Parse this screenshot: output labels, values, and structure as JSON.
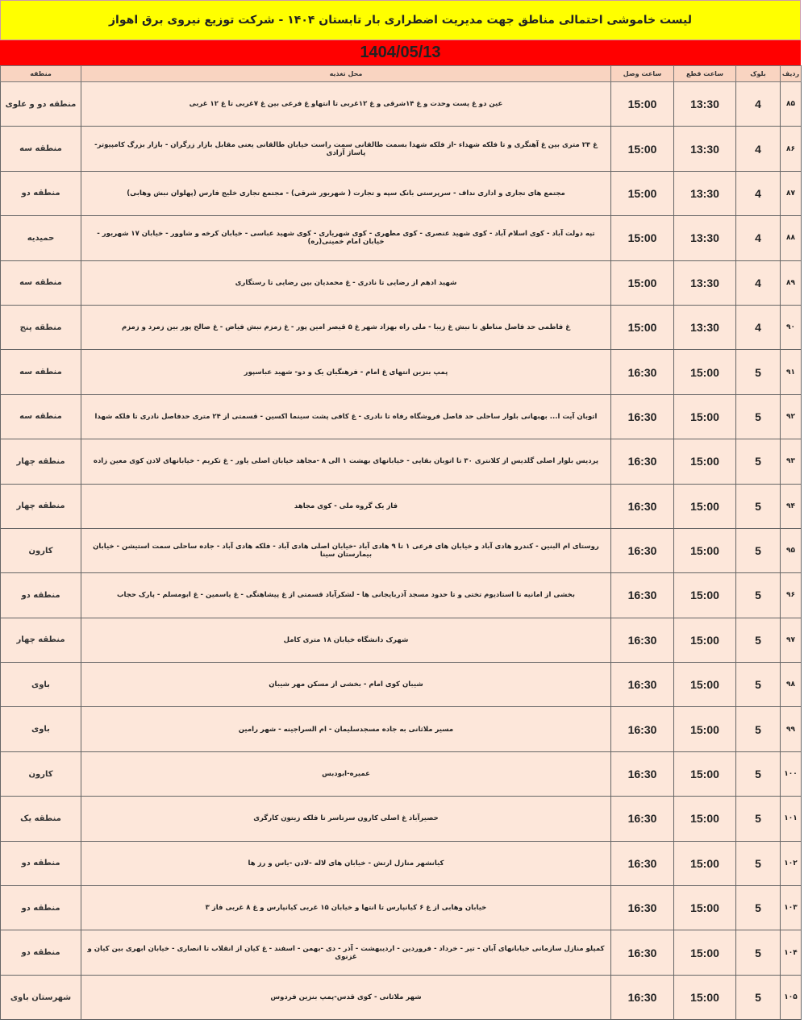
{
  "title": "لیست خاموشی احتمالی مناطق جهت مدیریت اضطراری بار تابستان ۱۴۰۴ - شرکت توزیع نیروی برق اهواز",
  "date": "1404/05/13",
  "headers": {
    "row": "ردیف",
    "block": "بلوک",
    "cut": "ساعت قطع",
    "reconnect": "ساعت وصل",
    "location": "محل تغذیه",
    "region": "منطقه"
  },
  "rows": [
    {
      "row": "۸۵",
      "block": "4",
      "cut": "13:30",
      "reconnect": "15:00",
      "location": "عین دو غ پست وحدت و غ ۱۴شرقی و غ ۱۲غربی تا انتهاو غ فرعی بین غ ۷غربی تا غ ۱۲ غربی",
      "region": "منطقه دو و علوی"
    },
    {
      "row": "۸۶",
      "block": "4",
      "cut": "13:30",
      "reconnect": "15:00",
      "location": "غ ۲۴ متری بین غ آهنگری و تا فلکه شهداء -از فلکه شهدا بسمت طالقانی سمت راست خیابان طالقانی یعنی مقابل بازار زرگران - بازار بزرگ کامپیوتر- پاساژ آزادی",
      "region": "منطقه سه"
    },
    {
      "row": "۸۷",
      "block": "4",
      "cut": "13:30",
      "reconnect": "15:00",
      "location": "مجتمع های تجاری و اداری نداف - سرپرستی بانک سپه و تجارت ( شهریور شرقی) - مجتمع تجاری خلیج فارس (پهلوان نبش وهابی)",
      "region": "منطقه دو"
    },
    {
      "row": "۸۸",
      "block": "4",
      "cut": "13:30",
      "reconnect": "15:00",
      "location": "تپه دولت آباد - کوی اسلام آباد - کوی شهید عنصری - کوی مطهری - کوی شهریاری - کوی شهید عباسی - خیابان کرخه و شاوور - خیابان ۱۷ شهریور - خیابان امام خمینی(ره)",
      "region": "حمیدیه"
    },
    {
      "row": "۸۹",
      "block": "4",
      "cut": "13:30",
      "reconnect": "15:00",
      "location": "شهید ادهم از رضایی تا نادری - غ محمدیان بین رضایی تا رستگاری",
      "region": "منطقه سه"
    },
    {
      "row": "۹۰",
      "block": "4",
      "cut": "13:30",
      "reconnect": "15:00",
      "location": "غ فاطمی حد فاصل مناطق تا نبش غ زیبا - ملی راه بهزاد شهر غ ۵ قیصر امین پور - غ زمزم نبش فیاض - غ صالح پور بین زمرد و زمزم",
      "region": "منطقه پنج"
    },
    {
      "row": "۹۱",
      "block": "5",
      "cut": "15:00",
      "reconnect": "16:30",
      "location": "پمپ بنزین انتهای غ امام  - فرهنگیان یک و دو- شهید عباسپور",
      "region": "منطقه سه"
    },
    {
      "row": "۹۲",
      "block": "5",
      "cut": "15:00",
      "reconnect": "16:30",
      "location": "اتوبان آیت ا... بهبهانی بلوار ساحلی حد فاصل فروشگاه رفاه تا نادری - غ کافی پشت سینما اکسین - قسمتی از ۲۴ متری حدفاصل نادری تا فلکه شهدا",
      "region": "منطقه سه"
    },
    {
      "row": "۹۳",
      "block": "5",
      "cut": "15:00",
      "reconnect": "16:30",
      "location": "پردیس بلوار اصلی گلدیس از کلانتری ۳۰ تا اتوبان بقایی - خیابانهای بهشت ۱ الی ۸ -مجاهد خیابان اصلی یاور - غ تکریم - خیابانهای لادن کوی معین زاده",
      "region": "منطقه چهار"
    },
    {
      "row": "۹۴",
      "block": "5",
      "cut": "15:00",
      "reconnect": "16:30",
      "location": "فاز یک گروه ملی - کوی مجاهد",
      "region": "منطقه چهار"
    },
    {
      "row": "۹۵",
      "block": "5",
      "cut": "15:00",
      "reconnect": "16:30",
      "location": "روستای ام البنین - کندرو هادی آباد و خیابان های فرعی ۱ تا ۹ هادی آباد -خیابان اصلی هادی آباد - فلکه هادی آباد - جاده ساحلی سمت استیشن - خیابان بیمارستان سینا",
      "region": "کارون"
    },
    {
      "row": "۹۶",
      "block": "5",
      "cut": "15:00",
      "reconnect": "16:30",
      "location": "بخشی از امانیه تا استادیوم تختی و تا حدود مسجد آذربایجانی ها - لشکرآباد قسمتی از غ پیشاهنگی - غ یاسمین - غ ابومسلم - پارک حجاب",
      "region": "منطقه دو"
    },
    {
      "row": "۹۷",
      "block": "5",
      "cut": "15:00",
      "reconnect": "16:30",
      "location": "شهرک دانشگاه خیابان ۱۸ متری کامل",
      "region": "منطقه چهار"
    },
    {
      "row": "۹۸",
      "block": "5",
      "cut": "15:00",
      "reconnect": "16:30",
      "location": "شیبان کوی امام - بخشی از مسکن مهر شیبان",
      "region": "باوی"
    },
    {
      "row": "۹۹",
      "block": "5",
      "cut": "15:00",
      "reconnect": "16:30",
      "location": "مسیر ملاثانی به جاده مسجدسلیمان - ام السراجینه - شهر رامین",
      "region": "باوی"
    },
    {
      "row": "۱۰۰",
      "block": "5",
      "cut": "15:00",
      "reconnect": "16:30",
      "location": "عمیره-ابودبس",
      "region": "کارون"
    },
    {
      "row": "۱۰۱",
      "block": "5",
      "cut": "15:00",
      "reconnect": "16:30",
      "location": "حصیرآباد غ اصلی کارون سرتاسر تا فلکه زیتون کارگری",
      "region": "منطقه یک"
    },
    {
      "row": "۱۰۲",
      "block": "5",
      "cut": "15:00",
      "reconnect": "16:30",
      "location": "کیانشهر منازل ارتش - خیابان های لاله -لادن -یاس و رز ها",
      "region": "منطقه دو"
    },
    {
      "row": "۱۰۳",
      "block": "5",
      "cut": "15:00",
      "reconnect": "16:30",
      "location": "خیابان وهابی از غ ۶ کیانپارس تا انتها و خیابان ۱۵ غربی کیانپارس و غ ۸ غربی فاز ۳",
      "region": "منطقه دو"
    },
    {
      "row": "۱۰۴",
      "block": "5",
      "cut": "15:00",
      "reconnect": "16:30",
      "location": "کمپلو منازل سازمانی خیابانهای آبان - تیر - خرداد - فروردین - اردیبهشت - آذر - دی -بهمن - اسفند - غ کیان از انقلاب تا انصاری - خیابان ابهری بین کیان و غزنوی",
      "region": "منطقه دو"
    },
    {
      "row": "۱۰۵",
      "block": "5",
      "cut": "15:00",
      "reconnect": "16:30",
      "location": "شهر ملاثانی - کوی قدس-پمپ بنزین فردوس",
      "region": "شهرستان باوی"
    }
  ]
}
